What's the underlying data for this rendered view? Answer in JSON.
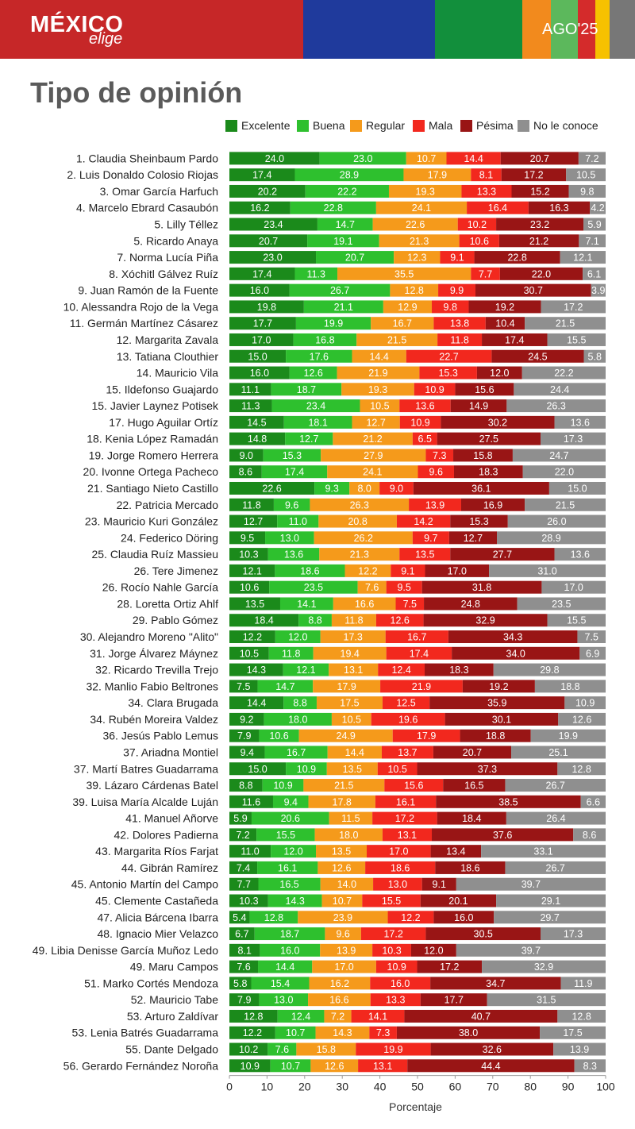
{
  "header": {
    "brand": "MÉXICO",
    "brand_sub": "elige",
    "period": "AGO'25",
    "colors": [
      "#c62728",
      "#1f3a9c",
      "#128f3c",
      "#f28a1d",
      "#5cb85c",
      "#d42b2b",
      "#f6c100",
      "#777777"
    ]
  },
  "title": "Tipo de opinión",
  "chart_data": {
    "type": "bar",
    "orientation": "horizontal",
    "stacked": true,
    "xlabel": "Porcentaje",
    "xlim": [
      0,
      100
    ],
    "xticks": [
      "0",
      "10",
      "20",
      "30",
      "40",
      "50",
      "60",
      "70",
      "80",
      "90",
      "100"
    ],
    "legend_position": "top",
    "series": [
      {
        "name": "Excelente",
        "color": "#1b8a1b"
      },
      {
        "name": "Buena",
        "color": "#2ec02e"
      },
      {
        "name": "Regular",
        "color": "#f59a1b"
      },
      {
        "name": "Mala",
        "color": "#f2281e"
      },
      {
        "name": "Pésima",
        "color": "#991515"
      },
      {
        "name": "No le conoce",
        "color": "#8f8f8f"
      }
    ],
    "rows": [
      {
        "label": "1. Claudia Sheinbaum Pardo",
        "values": [
          24.0,
          23.0,
          10.7,
          14.4,
          20.7,
          7.2
        ]
      },
      {
        "label": "2. Luis Donaldo Colosio Riojas",
        "values": [
          17.4,
          28.9,
          17.9,
          8.1,
          17.2,
          10.5
        ]
      },
      {
        "label": "3. Omar García Harfuch",
        "values": [
          20.2,
          22.2,
          19.3,
          13.3,
          15.2,
          9.8
        ]
      },
      {
        "label": "4. Marcelo Ebrard Casaubón",
        "values": [
          16.2,
          22.8,
          24.1,
          16.4,
          16.3,
          4.2
        ]
      },
      {
        "label": "5. Lilly Téllez",
        "values": [
          23.4,
          14.7,
          22.6,
          10.2,
          23.2,
          5.9
        ]
      },
      {
        "label": "5. Ricardo Anaya",
        "values": [
          20.7,
          19.1,
          21.3,
          10.6,
          21.2,
          7.1
        ]
      },
      {
        "label": "7. Norma Lucía Piña",
        "values": [
          23.0,
          20.7,
          12.3,
          9.1,
          22.8,
          12.1
        ]
      },
      {
        "label": "8. Xóchitl Gálvez Ruíz",
        "values": [
          17.4,
          11.3,
          35.5,
          7.7,
          22.0,
          6.1
        ]
      },
      {
        "label": "9. Juan Ramón de la Fuente",
        "values": [
          16.0,
          26.7,
          12.8,
          9.9,
          30.7,
          3.9
        ]
      },
      {
        "label": "10. Alessandra Rojo de la Vega",
        "values": [
          19.8,
          21.1,
          12.9,
          9.8,
          19.2,
          17.2
        ]
      },
      {
        "label": "11. Germán Martínez Cásarez",
        "values": [
          17.7,
          19.9,
          16.7,
          13.8,
          10.4,
          21.5
        ]
      },
      {
        "label": "12. Margarita Zavala",
        "values": [
          17.0,
          16.8,
          21.5,
          11.8,
          17.4,
          15.5
        ]
      },
      {
        "label": "13. Tatiana Clouthier",
        "values": [
          15.0,
          17.6,
          14.4,
          22.7,
          24.5,
          5.8
        ]
      },
      {
        "label": "14. Mauricio Vila",
        "values": [
          16.0,
          12.6,
          21.9,
          15.3,
          12.0,
          22.2
        ]
      },
      {
        "label": "15. Ildefonso Guajardo",
        "values": [
          11.1,
          18.7,
          19.3,
          10.9,
          15.6,
          24.4
        ]
      },
      {
        "label": "15. Javier Laynez Potisek",
        "values": [
          11.3,
          23.4,
          10.5,
          13.6,
          14.9,
          26.3
        ]
      },
      {
        "label": "17. Hugo Aguilar Ortíz",
        "values": [
          14.5,
          18.1,
          12.7,
          10.9,
          30.2,
          13.6
        ]
      },
      {
        "label": "18. Kenia López Ramadán",
        "values": [
          14.8,
          12.7,
          21.2,
          6.5,
          27.5,
          17.3
        ]
      },
      {
        "label": "19. Jorge Romero Herrera",
        "values": [
          9.0,
          15.3,
          27.9,
          7.3,
          15.8,
          24.7
        ]
      },
      {
        "label": "20. Ivonne Ortega Pacheco",
        "values": [
          8.6,
          17.4,
          24.1,
          9.6,
          18.3,
          22.0
        ]
      },
      {
        "label": "21. Santiago Nieto Castillo",
        "values": [
          22.6,
          9.3,
          8.0,
          9.0,
          36.1,
          15.0
        ]
      },
      {
        "label": "22. Patricia Mercado",
        "values": [
          11.8,
          9.6,
          26.3,
          13.9,
          16.9,
          21.5
        ]
      },
      {
        "label": "23. Mauricio Kuri González",
        "values": [
          12.7,
          11.0,
          20.8,
          14.2,
          15.3,
          26.0
        ]
      },
      {
        "label": "24. Federico Döring",
        "values": [
          9.5,
          13.0,
          26.2,
          9.7,
          12.7,
          28.9
        ]
      },
      {
        "label": "25. Claudia Ruíz Massieu",
        "values": [
          10.3,
          13.6,
          21.3,
          13.5,
          27.7,
          13.6
        ]
      },
      {
        "label": "26. Tere Jimenez",
        "values": [
          12.1,
          18.6,
          12.2,
          9.1,
          17.0,
          31.0
        ]
      },
      {
        "label": "26. Rocío Nahle García",
        "values": [
          10.6,
          23.5,
          7.6,
          9.5,
          31.8,
          17.0
        ]
      },
      {
        "label": "28. Loretta Ortiz Ahlf",
        "values": [
          13.5,
          14.1,
          16.6,
          7.5,
          24.8,
          23.5
        ]
      },
      {
        "label": "29. Pablo Gómez",
        "values": [
          18.4,
          8.8,
          11.8,
          12.6,
          32.9,
          15.5
        ]
      },
      {
        "label": "30. Alejandro Moreno \"Alito\"",
        "values": [
          12.2,
          12.0,
          17.3,
          16.7,
          34.3,
          7.5
        ]
      },
      {
        "label": "31. Jorge Álvarez Máynez",
        "values": [
          10.5,
          11.8,
          19.4,
          17.4,
          34.0,
          6.9
        ]
      },
      {
        "label": "32. Ricardo Trevilla Trejo",
        "values": [
          14.3,
          12.1,
          13.1,
          12.4,
          18.3,
          29.8
        ]
      },
      {
        "label": "32. Manlio Fabio Beltrones",
        "values": [
          7.5,
          14.7,
          17.9,
          21.9,
          19.2,
          18.8
        ]
      },
      {
        "label": "34. Clara Brugada",
        "values": [
          14.4,
          8.8,
          17.5,
          12.5,
          35.9,
          10.9
        ]
      },
      {
        "label": "34. Rubén Moreira Valdez",
        "values": [
          9.2,
          18.0,
          10.5,
          19.6,
          30.1,
          12.6
        ]
      },
      {
        "label": "36. Jesús Pablo Lemus",
        "values": [
          7.9,
          10.6,
          24.9,
          17.9,
          18.8,
          19.9
        ]
      },
      {
        "label": "37. Ariadna Montiel",
        "values": [
          9.4,
          16.7,
          14.4,
          13.7,
          20.7,
          25.1
        ]
      },
      {
        "label": "37. Martí Batres Guadarrama",
        "values": [
          15.0,
          10.9,
          13.5,
          10.5,
          37.3,
          12.8
        ]
      },
      {
        "label": "39. Lázaro Cárdenas Batel",
        "values": [
          8.8,
          10.9,
          21.5,
          15.6,
          16.5,
          26.7
        ]
      },
      {
        "label": "39. Luisa María Alcalde Luján",
        "values": [
          11.6,
          9.4,
          17.8,
          16.1,
          38.5,
          6.6
        ]
      },
      {
        "label": "41. Manuel Añorve",
        "values": [
          5.9,
          20.6,
          11.5,
          17.2,
          18.4,
          26.4
        ]
      },
      {
        "label": "42. Dolores Padierna",
        "values": [
          7.2,
          15.5,
          18.0,
          13.1,
          37.6,
          8.6
        ]
      },
      {
        "label": "43. Margarita Ríos Farjat",
        "values": [
          11.0,
          12.0,
          13.5,
          17.0,
          13.4,
          33.1
        ]
      },
      {
        "label": "44. Gibrán Ramírez",
        "values": [
          7.4,
          16.1,
          12.6,
          18.6,
          18.6,
          26.7
        ]
      },
      {
        "label": "45. Antonio Martín del Campo",
        "values": [
          7.7,
          16.5,
          14.0,
          13.0,
          9.1,
          39.7
        ]
      },
      {
        "label": "45. Clemente Castañeda",
        "values": [
          10.3,
          14.3,
          10.7,
          15.5,
          20.1,
          29.1
        ]
      },
      {
        "label": "47. Alicia Bárcena Ibarra",
        "values": [
          5.4,
          12.8,
          23.9,
          12.2,
          16.0,
          29.7
        ]
      },
      {
        "label": "48. Ignacio Mier Velazco",
        "values": [
          6.7,
          18.7,
          9.6,
          17.2,
          30.5,
          17.3
        ]
      },
      {
        "label": "49. Libia Denisse García Muñoz Ledo",
        "values": [
          8.1,
          16.0,
          13.9,
          10.3,
          12.0,
          39.7
        ]
      },
      {
        "label": "49. Maru Campos",
        "values": [
          7.6,
          14.4,
          17.0,
          10.9,
          17.2,
          32.9
        ]
      },
      {
        "label": "51. Marko Cortés Mendoza",
        "values": [
          5.8,
          15.4,
          16.2,
          16.0,
          34.7,
          11.9
        ]
      },
      {
        "label": "52. Mauricio Tabe",
        "values": [
          7.9,
          13.0,
          16.6,
          13.3,
          17.7,
          31.5
        ]
      },
      {
        "label": "53. Arturo Zaldívar",
        "values": [
          12.8,
          12.4,
          7.2,
          14.1,
          40.7,
          12.8
        ]
      },
      {
        "label": "53. Lenia Batrés Guadarrama",
        "values": [
          12.2,
          10.7,
          14.3,
          7.3,
          38.0,
          17.5
        ]
      },
      {
        "label": "55. Dante Delgado",
        "values": [
          10.2,
          7.6,
          15.8,
          19.9,
          32.6,
          13.9
        ]
      },
      {
        "label": "56. Gerardo Fernández Noroña",
        "values": [
          10.9,
          10.7,
          12.6,
          13.1,
          44.4,
          8.3
        ]
      }
    ]
  }
}
